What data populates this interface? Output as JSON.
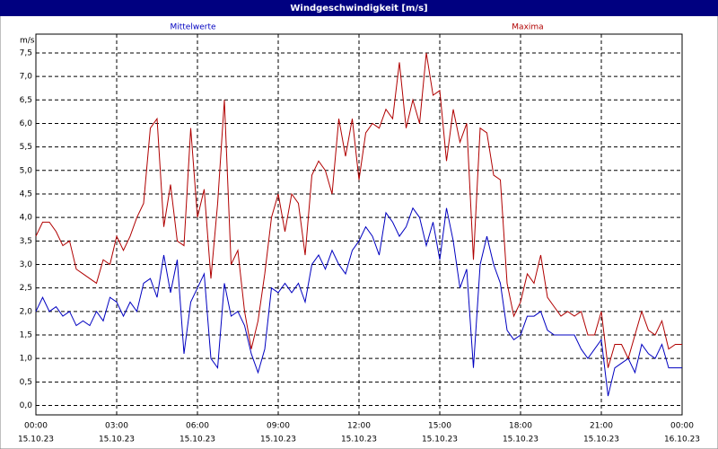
{
  "chart_data": {
    "type": "line",
    "title": "Windgeschwindigkeit [m/s]",
    "ylabel": "m/s",
    "xlim": [
      0,
      24
    ],
    "ylim": [
      -0.2,
      7.9
    ],
    "xticks": [
      {
        "value": 0,
        "label": "00:00"
      },
      {
        "value": 3,
        "label": "03:00"
      },
      {
        "value": 6,
        "label": "06:00"
      },
      {
        "value": 9,
        "label": "09:00"
      },
      {
        "value": 12,
        "label": "12:00"
      },
      {
        "value": 15,
        "label": "15:00"
      },
      {
        "value": 18,
        "label": "18:00"
      },
      {
        "value": 21,
        "label": "21:00"
      },
      {
        "value": 24,
        "label": "00:00"
      }
    ],
    "xtick_dates": [
      "15.10.23",
      "15.10.23",
      "15.10.23",
      "15.10.23",
      "15.10.23",
      "15.10.23",
      "15.10.23",
      "15.10.23",
      "16.10.23"
    ],
    "yticks": [
      {
        "value": 0,
        "label": "0,0"
      },
      {
        "value": 0.5,
        "label": "0,5"
      },
      {
        "value": 1,
        "label": "1,0"
      },
      {
        "value": 1.5,
        "label": "1,5"
      },
      {
        "value": 2,
        "label": "2,0"
      },
      {
        "value": 2.5,
        "label": "2,5"
      },
      {
        "value": 3,
        "label": "3,0"
      },
      {
        "value": 3.5,
        "label": "3,5"
      },
      {
        "value": 4,
        "label": "4,0"
      },
      {
        "value": 4.5,
        "label": "4,5"
      },
      {
        "value": 5,
        "label": "5,0"
      },
      {
        "value": 5.5,
        "label": "5,5"
      },
      {
        "value": 6,
        "label": "6,0"
      },
      {
        "value": 6.5,
        "label": "6,5"
      },
      {
        "value": 7,
        "label": "7,0"
      },
      {
        "value": 7.5,
        "label": "7,5"
      }
    ],
    "grid": true,
    "x": [
      0,
      0.25,
      0.5,
      0.75,
      1,
      1.25,
      1.5,
      1.75,
      2,
      2.25,
      2.5,
      2.75,
      3,
      3.25,
      3.5,
      3.75,
      4,
      4.25,
      4.5,
      4.75,
      5,
      5.25,
      5.5,
      5.75,
      6,
      6.25,
      6.5,
      6.75,
      7,
      7.25,
      7.5,
      7.75,
      8,
      8.25,
      8.5,
      8.75,
      9,
      9.25,
      9.5,
      9.75,
      10,
      10.25,
      10.5,
      10.75,
      11,
      11.25,
      11.5,
      11.75,
      12,
      12.25,
      12.5,
      12.75,
      13,
      13.25,
      13.5,
      13.75,
      14,
      14.25,
      14.5,
      14.75,
      15,
      15.25,
      15.5,
      15.75,
      16,
      16.25,
      16.5,
      16.75,
      17,
      17.25,
      17.5,
      17.75,
      18,
      18.25,
      18.5,
      18.75,
      19,
      19.25,
      19.5,
      19.75,
      20,
      20.25,
      20.5,
      20.75,
      21,
      21.25,
      21.5,
      21.75,
      22,
      22.25,
      22.5,
      22.75,
      23,
      23.25,
      23.5,
      23.75,
      24
    ],
    "series": [
      {
        "name": "Mittelwerte",
        "color": "#0000c0",
        "values": [
          2.0,
          2.3,
          2.0,
          2.1,
          1.9,
          2.0,
          1.7,
          1.8,
          1.7,
          2.0,
          1.8,
          2.3,
          2.2,
          1.9,
          2.2,
          2.0,
          2.6,
          2.7,
          2.3,
          3.2,
          2.4,
          3.1,
          1.1,
          2.2,
          2.5,
          2.8,
          1.0,
          0.8,
          2.6,
          1.9,
          2.0,
          1.7,
          1.1,
          0.7,
          1.2,
          2.5,
          2.4,
          2.6,
          2.4,
          2.6,
          2.2,
          3.0,
          3.2,
          2.9,
          3.3,
          3.0,
          2.8,
          3.3,
          3.5,
          3.8,
          3.6,
          3.2,
          4.1,
          3.9,
          3.6,
          3.8,
          4.2,
          4.0,
          3.4,
          3.9,
          3.1,
          4.2,
          3.5,
          2.5,
          2.9,
          0.8,
          3.0,
          3.6,
          3.0,
          2.6,
          1.6,
          1.4,
          1.5,
          1.9,
          1.9,
          2.0,
          1.6,
          1.5,
          1.5,
          1.5,
          1.5,
          1.2,
          1.0,
          1.2,
          1.4,
          0.2,
          0.8,
          0.9,
          1.0,
          0.7,
          1.3,
          1.1,
          1.0,
          1.3,
          0.8,
          0.8,
          0.8
        ]
      },
      {
        "name": "Maxima",
        "color": "#b00000",
        "values": [
          3.6,
          3.9,
          3.9,
          3.7,
          3.4,
          3.5,
          2.9,
          2.8,
          2.7,
          2.6,
          3.1,
          3.0,
          3.6,
          3.3,
          3.6,
          4.0,
          4.3,
          5.9,
          6.1,
          3.8,
          4.7,
          3.5,
          3.4,
          5.9,
          4.0,
          4.6,
          2.7,
          4.3,
          6.5,
          3.0,
          3.3,
          2.0,
          1.2,
          1.8,
          2.8,
          4.0,
          4.5,
          3.7,
          4.5,
          4.3,
          3.2,
          4.9,
          5.2,
          5.0,
          4.5,
          6.1,
          5.3,
          6.1,
          4.8,
          5.8,
          6.0,
          5.9,
          6.3,
          6.1,
          7.3,
          5.9,
          6.5,
          6.0,
          7.5,
          6.6,
          6.7,
          5.2,
          6.3,
          5.6,
          6.0,
          3.1,
          5.9,
          5.8,
          4.9,
          4.8,
          2.6,
          1.9,
          2.2,
          2.8,
          2.6,
          3.2,
          2.3,
          2.1,
          1.9,
          2.0,
          1.9,
          2.0,
          1.5,
          1.5,
          2.0,
          0.8,
          1.3,
          1.3,
          1.0,
          1.5,
          2.0,
          1.6,
          1.5,
          1.8,
          1.2,
          1.3,
          1.3
        ]
      }
    ]
  }
}
